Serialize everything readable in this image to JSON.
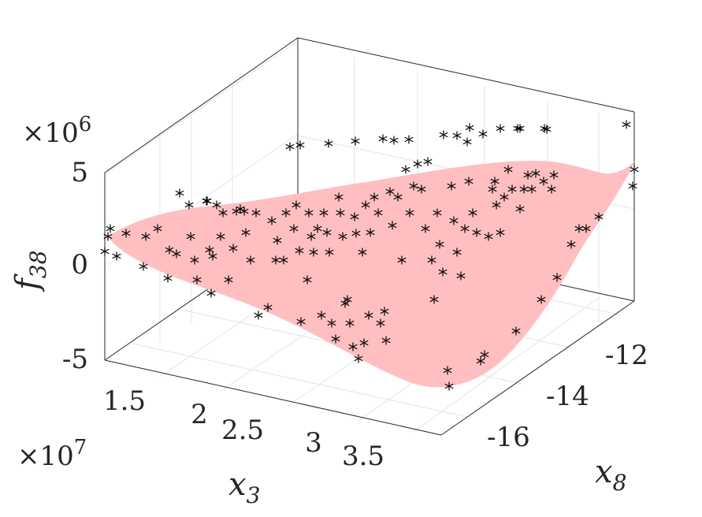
{
  "chart_data": {
    "type": "scatter",
    "subtype": "scatter3d-with-surface",
    "title": "",
    "xlabel": {
      "base": "x",
      "sub": "3"
    },
    "ylabel": {
      "base": "x",
      "sub": "8"
    },
    "zlabel": {
      "base": "f",
      "sub": "38"
    },
    "x_multiplier": "×10",
    "x_multiplier_exp": "7",
    "z_multiplier": "×10",
    "z_multiplier_exp": "6",
    "xlim": [
      1.3,
      3.9
    ],
    "ylim": [
      -17.2,
      -10.6
    ],
    "zlim": [
      -5,
      5
    ],
    "x_ticks": [
      "1.5",
      "2",
      "2.5",
      "3",
      "3.5"
    ],
    "y_ticks": [
      "-12",
      "-14",
      "-16"
    ],
    "z_ticks": [
      "5",
      "0",
      "-5"
    ],
    "grid": true,
    "colors": {
      "surface": "#ffbfc0",
      "markers": "#000000",
      "axes": "#262626",
      "grid": "#e6e6e6"
    },
    "series": [
      {
        "type": "surface"
      },
      {
        "type": "scatter3d",
        "marker": "asterisk"
      }
    ]
  }
}
